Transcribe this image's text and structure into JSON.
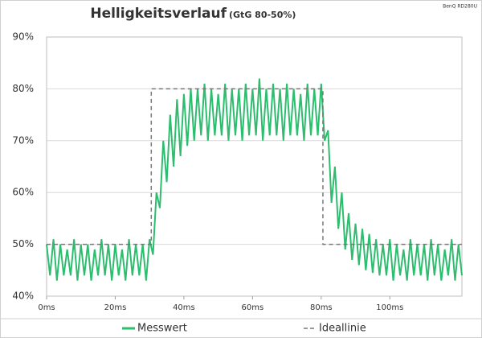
{
  "chart_data": {
    "type": "line",
    "title": "Helligkeitsverlauf",
    "subtitle": "(GtG 80-50%)",
    "source": "BenQ RD280U",
    "xlim": [
      0,
      121
    ],
    "xticks": [
      {
        "value": 0,
        "label": "0ms"
      },
      {
        "value": 20,
        "label": "20ms"
      },
      {
        "value": 40,
        "label": "40ms"
      },
      {
        "value": 60,
        "label": "60ms"
      },
      {
        "value": 80,
        "label": "80ms"
      },
      {
        "value": 100,
        "label": "100ms"
      }
    ],
    "ylim": [
      40,
      90
    ],
    "yticks": [
      {
        "value": 40,
        "label": "40%"
      },
      {
        "value": 50,
        "label": "50%"
      },
      {
        "value": 60,
        "label": "60%"
      },
      {
        "value": 70,
        "label": "70%"
      },
      {
        "value": 80,
        "label": "80%"
      },
      {
        "value": 90,
        "label": "90%"
      }
    ],
    "grid": true,
    "legend": "bottom",
    "series": [
      {
        "name": "Messwert",
        "color": "#2dbd6e",
        "x": [
          0,
          1,
          2,
          3,
          4,
          5,
          6,
          7,
          8,
          9,
          10,
          11,
          12,
          13,
          14,
          15,
          16,
          17,
          18,
          19,
          20,
          21,
          22,
          23,
          24,
          25,
          26,
          27,
          28,
          29,
          30,
          31,
          32,
          33,
          34,
          35,
          36,
          37,
          38,
          39,
          40,
          41,
          42,
          43,
          44,
          45,
          46,
          47,
          48,
          49,
          50,
          51,
          52,
          53,
          54,
          55,
          56,
          57,
          58,
          59,
          60,
          61,
          62,
          63,
          64,
          65,
          66,
          67,
          68,
          69,
          70,
          71,
          72,
          73,
          74,
          75,
          76,
          77,
          78,
          79,
          80,
          81,
          82,
          83,
          84,
          85,
          86,
          87,
          88,
          89,
          90,
          91,
          92,
          93,
          94,
          95,
          96,
          97,
          98,
          99,
          100,
          101,
          102,
          103,
          104,
          105,
          106,
          107,
          108,
          109,
          110,
          111,
          112,
          113,
          114,
          115,
          116,
          117,
          118,
          119,
          120,
          121
        ],
        "values": [
          50,
          44,
          51,
          43,
          50,
          44,
          49,
          44,
          51,
          43,
          50,
          44,
          50,
          43,
          49,
          44,
          51,
          44,
          50,
          43,
          50,
          44,
          49,
          43,
          51,
          44,
          50,
          44,
          50,
          43,
          51,
          48,
          60,
          57,
          70,
          62,
          75,
          65,
          78,
          67,
          79,
          69,
          80,
          70,
          80,
          71,
          81,
          70,
          80,
          71,
          79,
          71,
          81,
          70,
          80,
          71,
          80,
          70,
          81,
          71,
          80,
          71,
          82,
          70,
          80,
          71,
          81,
          71,
          80,
          70,
          81,
          71,
          80,
          71,
          79,
          70,
          81,
          71,
          80,
          71,
          81,
          70,
          72,
          58,
          65,
          53,
          60,
          49,
          56,
          47,
          54,
          46,
          53,
          45,
          52,
          44.5,
          51,
          44,
          50,
          44,
          51,
          43,
          50,
          44,
          49,
          43,
          51,
          44,
          50,
          44,
          50,
          43,
          51,
          44,
          50,
          43,
          49,
          44,
          51,
          43,
          50,
          44
        ]
      },
      {
        "name": "Ideallinie",
        "color": "#777777",
        "dashed": true,
        "x": [
          0,
          30.5,
          30.5,
          80.5,
          80.5,
          121
        ],
        "values": [
          50,
          50,
          80,
          80,
          50,
          50
        ]
      }
    ]
  }
}
